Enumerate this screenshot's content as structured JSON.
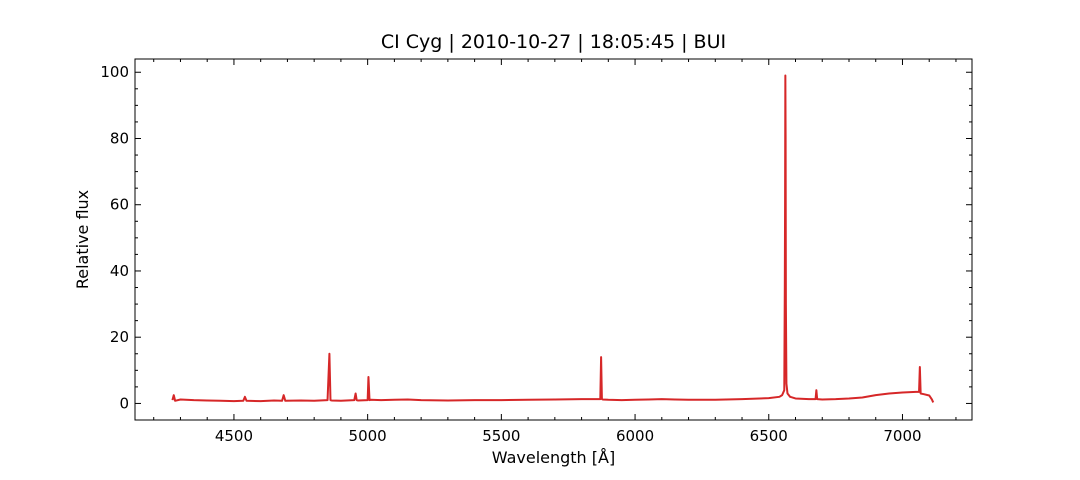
{
  "chart_data": {
    "type": "line",
    "title": "CI Cyg | 2010-10-27 | 18:05:45 | BUI",
    "xlabel": "Wavelength [Å]",
    "ylabel": "Relative flux",
    "xlim": [
      4130,
      7260
    ],
    "ylim": [
      -5,
      104
    ],
    "xticks": [
      4500,
      5000,
      5500,
      6000,
      6500,
      7000
    ],
    "yticks": [
      0,
      20,
      40,
      60,
      80,
      100
    ],
    "grid": false,
    "legend": false,
    "color": "#d62728",
    "series": [
      {
        "x": [
          4270,
          4275,
          4280,
          4300,
          4350,
          4400,
          4450,
          4500,
          4535,
          4541,
          4547,
          4600,
          4650,
          4680,
          4686,
          4692,
          4750,
          4800,
          4850,
          4857,
          4861,
          4865,
          4900,
          4950,
          4955,
          4959,
          4963,
          5000,
          5003,
          5007,
          5011,
          5050,
          5100,
          5150,
          5200,
          5300,
          5400,
          5500,
          5600,
          5700,
          5800,
          5870,
          5873,
          5876,
          5879,
          5900,
          5950,
          6000,
          6050,
          6100,
          6150,
          6200,
          6300,
          6400,
          6500,
          6540,
          6550,
          6558,
          6560,
          6561,
          6562,
          6563,
          6564,
          6566,
          6570,
          6580,
          6600,
          6650,
          6675,
          6678,
          6681,
          6700,
          6750,
          6800,
          6850,
          6900,
          6950,
          7000,
          7050,
          7062,
          7065,
          7068,
          7080,
          7100,
          7110,
          7115
        ],
        "y": [
          1.0,
          2.5,
          0.8,
          1.2,
          1.0,
          0.9,
          0.8,
          0.7,
          0.8,
          2.0,
          0.8,
          0.7,
          0.9,
          0.8,
          2.5,
          0.8,
          0.9,
          0.8,
          1.0,
          15.0,
          1.0,
          0.9,
          0.8,
          1.0,
          3.0,
          1.0,
          0.9,
          1.0,
          8.0,
          1.0,
          1.1,
          1.0,
          1.1,
          1.2,
          1.0,
          0.9,
          1.0,
          1.0,
          1.1,
          1.2,
          1.3,
          1.3,
          14.0,
          1.3,
          1.2,
          1.1,
          1.0,
          1.1,
          1.2,
          1.3,
          1.2,
          1.1,
          1.1,
          1.3,
          1.6,
          2.0,
          2.5,
          4.0,
          35.0,
          60.0,
          99.0,
          80.0,
          30.0,
          6.0,
          3.0,
          2.0,
          1.5,
          1.3,
          1.3,
          4.0,
          1.3,
          1.2,
          1.3,
          1.5,
          1.8,
          2.5,
          3.0,
          3.3,
          3.5,
          3.5,
          11.0,
          3.0,
          2.8,
          2.4,
          1.2,
          0.3
        ]
      }
    ]
  }
}
